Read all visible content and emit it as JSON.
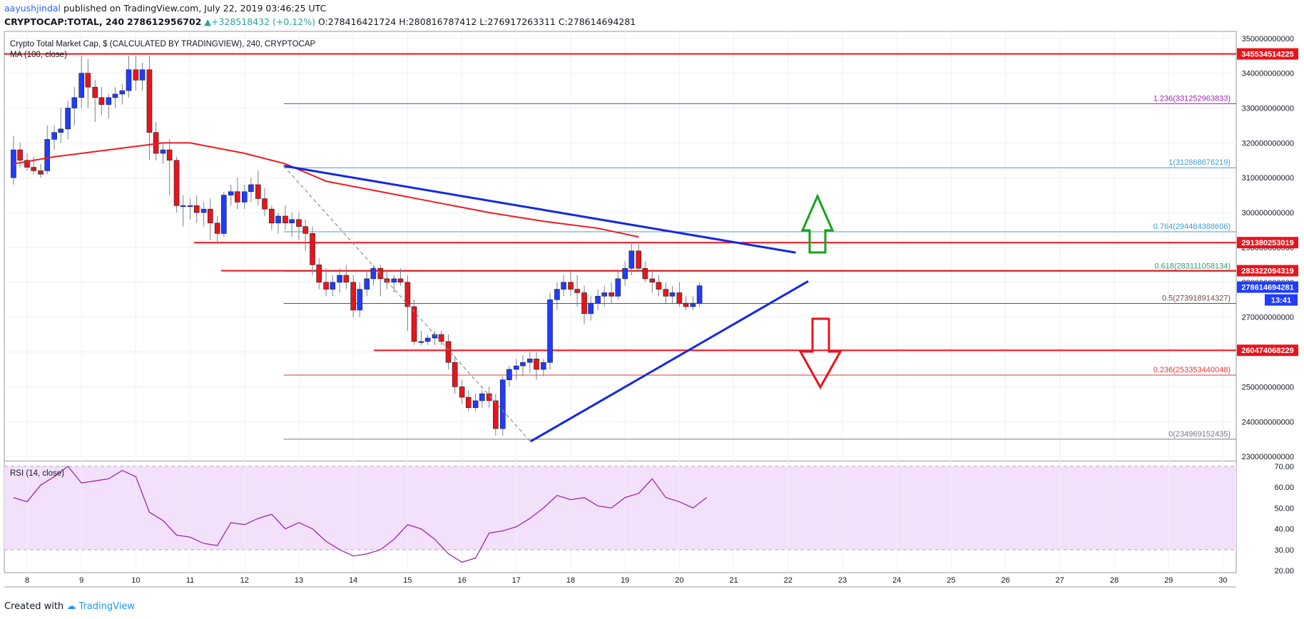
{
  "header": {
    "author": "aayushjindal",
    "published": "published on TradingView.com, July 22, 2019 03:46:25 UTC",
    "symbol": "CRYPTOCAP:TOTAL, 240",
    "price": "278612956702",
    "change_arrow": "▲",
    "change": "+328518432 (+0.12%)",
    "o_label": "O:",
    "o": "278416421724",
    "h_label": "H:",
    "h": "280816787412",
    "l_label": "L:",
    "l": "276917263311",
    "c_label": "C:",
    "c": "278614694281"
  },
  "legend": {
    "title": "Crypto Total Market Cap, $ (CALCULATED BY TRADINGVIEW), 240, CRYPTOCAP",
    "ma": "MA (100, close)",
    "rsi": "RSI (14, close)"
  },
  "footer": {
    "created_with": "Created with",
    "brand": "TradingView"
  },
  "colors": {
    "up": "#1f3cff",
    "down": "#e8141c",
    "ma": "#ee1c22",
    "trendline": "#1428e0",
    "fib": "#9c27b0",
    "rsi": "#9c27b0",
    "rsi_band": "#f3e0fb",
    "arrow_up": "#17a31a",
    "arrow_down": "#e8141c",
    "current": "#1f3cff"
  },
  "chart_data": [
    {
      "type": "candlestick",
      "x_axis": {
        "ticks": [
          "8",
          "9",
          "10",
          "11",
          "12",
          "13",
          "14",
          "15",
          "16",
          "17",
          "18",
          "19",
          "20",
          "21",
          "22",
          "23",
          "24",
          "25",
          "26",
          "27",
          "28",
          "29",
          "30"
        ]
      },
      "y_axis": {
        "range": [
          229000000000,
          352000000000
        ],
        "ticks": [
          "230000000000",
          "240000000000",
          "250000000000",
          "260000000000",
          "270000000000",
          "280000000000",
          "290000000000",
          "300000000000",
          "310000000000",
          "320000000000",
          "330000000000",
          "340000000000",
          "350000000000"
        ]
      },
      "candles": [
        [
          7.75,
          310,
          322,
          308,
          318
        ],
        [
          7.87,
          318,
          320,
          313,
          315
        ],
        [
          8.0,
          315,
          317,
          312,
          313
        ],
        [
          8.12,
          313,
          316,
          311,
          312
        ],
        [
          8.25,
          312,
          314,
          310,
          311
        ],
        [
          8.37,
          312,
          325,
          311,
          321
        ],
        [
          8.5,
          321,
          325,
          318,
          323
        ],
        [
          8.62,
          323,
          330,
          320,
          324
        ],
        [
          8.75,
          324,
          332,
          321,
          330
        ],
        [
          8.87,
          330,
          336,
          325,
          333
        ],
        [
          9.0,
          333,
          345,
          330,
          340
        ],
        [
          9.12,
          340,
          344,
          330,
          336
        ],
        [
          9.25,
          336,
          338,
          326,
          333
        ],
        [
          9.37,
          333,
          336,
          328,
          331
        ],
        [
          9.5,
          331,
          334,
          327,
          333
        ],
        [
          9.62,
          333,
          336,
          330,
          334
        ],
        [
          9.75,
          334,
          337,
          331,
          335
        ],
        [
          9.87,
          335,
          345,
          333,
          341
        ],
        [
          10.0,
          341,
          345,
          335,
          338
        ],
        [
          10.12,
          338,
          343,
          335,
          341
        ],
        [
          10.25,
          341,
          345,
          315,
          323
        ],
        [
          10.37,
          323,
          326,
          315,
          317
        ],
        [
          10.5,
          317,
          320,
          314,
          318
        ],
        [
          10.62,
          318,
          321,
          305,
          315
        ],
        [
          10.75,
          315,
          316,
          300,
          302
        ],
        [
          10.87,
          302,
          305,
          296,
          302
        ],
        [
          11.0,
          302,
          304,
          298,
          302
        ],
        [
          11.12,
          302,
          305,
          297,
          300
        ],
        [
          11.25,
          300,
          303,
          296,
          301
        ],
        [
          11.37,
          301,
          304,
          292,
          297
        ],
        [
          11.5,
          297,
          299,
          291,
          294
        ],
        [
          11.62,
          294,
          306,
          293,
          305
        ],
        [
          11.75,
          305,
          308,
          302,
          306
        ],
        [
          11.87,
          306,
          310,
          301,
          303
        ],
        [
          12.0,
          303,
          308,
          301,
          306
        ],
        [
          12.12,
          306,
          310,
          303,
          308
        ],
        [
          12.25,
          308,
          312,
          302,
          304
        ],
        [
          12.37,
          304,
          307,
          299,
          301
        ],
        [
          12.5,
          301,
          302,
          295,
          297
        ],
        [
          12.62,
          297,
          300,
          294,
          299
        ],
        [
          12.75,
          299,
          302,
          295,
          297
        ],
        [
          12.87,
          297,
          300,
          293,
          298
        ],
        [
          13.0,
          298,
          300,
          292,
          296
        ],
        [
          13.12,
          296,
          298,
          289,
          294
        ],
        [
          13.25,
          294,
          296,
          282,
          285
        ],
        [
          13.37,
          285,
          287,
          278,
          280
        ],
        [
          13.5,
          280,
          284,
          276,
          278
        ],
        [
          13.62,
          278,
          282,
          276,
          280
        ],
        [
          13.75,
          280,
          284,
          277,
          282
        ],
        [
          13.87,
          282,
          285,
          278,
          280
        ],
        [
          14.0,
          280,
          282,
          270,
          272
        ],
        [
          14.12,
          272,
          280,
          270,
          278
        ],
        [
          14.25,
          278,
          283,
          276,
          281
        ],
        [
          14.37,
          281,
          285,
          279,
          284
        ],
        [
          14.5,
          284,
          285,
          276,
          281
        ],
        [
          14.62,
          281,
          283,
          278,
          280
        ],
        [
          14.75,
          280,
          282,
          277,
          281
        ],
        [
          14.87,
          281,
          284,
          279,
          280
        ],
        [
          15.0,
          280,
          282,
          266,
          273
        ],
        [
          15.12,
          273,
          275,
          262,
          263
        ],
        [
          15.25,
          263,
          266,
          262,
          263
        ],
        [
          15.37,
          263,
          265,
          262,
          264
        ],
        [
          15.5,
          264,
          266,
          262,
          265
        ],
        [
          15.62,
          265,
          266,
          262,
          263
        ],
        [
          15.75,
          263,
          265,
          255,
          257
        ],
        [
          15.87,
          257,
          259,
          248,
          250
        ],
        [
          16.0,
          250,
          252,
          245,
          247
        ],
        [
          16.12,
          247,
          249,
          243,
          244
        ],
        [
          16.25,
          244,
          248,
          243,
          246
        ],
        [
          16.37,
          246,
          249,
          244,
          248
        ],
        [
          16.5,
          248,
          250,
          244,
          246
        ],
        [
          16.62,
          246,
          248,
          236,
          238
        ],
        [
          16.75,
          238,
          253,
          236,
          252
        ],
        [
          16.87,
          252,
          256,
          250,
          255
        ],
        [
          17.0,
          255,
          258,
          252,
          256
        ],
        [
          17.12,
          256,
          259,
          253,
          257
        ],
        [
          17.25,
          257,
          260,
          254,
          258
        ],
        [
          17.37,
          258,
          260,
          252,
          255
        ],
        [
          17.5,
          255,
          258,
          253,
          257
        ],
        [
          17.62,
          257,
          277,
          255,
          275
        ],
        [
          17.75,
          275,
          280,
          272,
          278
        ],
        [
          17.87,
          278,
          282,
          276,
          280
        ],
        [
          18.0,
          280,
          283,
          276,
          278
        ],
        [
          18.12,
          278,
          282,
          273,
          277
        ],
        [
          18.25,
          277,
          279,
          268,
          271
        ],
        [
          18.37,
          271,
          276,
          269,
          274
        ],
        [
          18.5,
          274,
          278,
          272,
          276
        ],
        [
          18.62,
          276,
          279,
          273,
          277
        ],
        [
          18.75,
          277,
          280,
          274,
          276
        ],
        [
          18.87,
          276,
          283,
          275,
          281
        ],
        [
          19.0,
          281,
          286,
          279,
          284
        ],
        [
          19.12,
          284,
          291,
          282,
          289
        ],
        [
          19.25,
          289,
          291,
          283,
          284
        ],
        [
          19.37,
          284,
          286,
          280,
          281
        ],
        [
          19.5,
          281,
          283,
          277,
          280
        ],
        [
          19.62,
          280,
          282,
          276,
          278
        ],
        [
          19.75,
          278,
          280,
          274,
          276
        ],
        [
          19.87,
          276,
          279,
          274,
          277
        ],
        [
          20.0,
          277,
          280,
          273,
          274
        ],
        [
          20.12,
          274,
          276,
          272,
          273
        ],
        [
          20.25,
          273,
          276,
          272,
          274
        ],
        [
          20.37,
          274,
          280,
          273,
          279
        ]
      ],
      "moving_average": [
        [
          7.75,
          314
        ],
        [
          8.5,
          316
        ],
        [
          9.5,
          318
        ],
        [
          10.5,
          320
        ],
        [
          11.0,
          320
        ],
        [
          12.0,
          317
        ],
        [
          12.75,
          314
        ],
        [
          13.5,
          309
        ],
        [
          14.5,
          306
        ],
        [
          15.5,
          303
        ],
        [
          16.5,
          300
        ],
        [
          17.5,
          297.5
        ],
        [
          18.5,
          295.5
        ],
        [
          19.25,
          293
        ]
      ],
      "horizontal_levels": [
        {
          "label": "345534514225",
          "value": 345534514225
        },
        {
          "label": "291380253019",
          "value": 291380253019
        },
        {
          "label": "283322094319",
          "value": 283322094319
        },
        {
          "label": "260474068229",
          "value": 260474068229
        }
      ],
      "fib_levels": [
        {
          "label": "1.236(331252963833)",
          "value": 331252963833
        },
        {
          "label": "1(312868676219)",
          "value": 312868676219
        },
        {
          "label": "0.764(294484388606)",
          "value": 294484388606
        },
        {
          "label": "0.618(283111058134)",
          "value": 283111058134
        },
        {
          "label": "0.5(273918914327)",
          "value": 273918914327
        },
        {
          "label": "0.236(253353440048)",
          "value": 253353440048
        },
        {
          "label": "0(234969152435)",
          "value": 234969152435
        }
      ],
      "trendlines": [
        {
          "name": "bearish trend line",
          "from": [
            12.72,
            313.4
          ],
          "to": [
            22.14,
            288.5
          ]
        },
        {
          "name": "bullish trend line",
          "from": [
            17.26,
            234.3
          ],
          "to": [
            22.37,
            280.3
          ]
        },
        {
          "name": "fib swing",
          "from": [
            12.72,
            313.4
          ],
          "to": [
            17.26,
            234.3
          ]
        }
      ],
      "current_price": {
        "label": "278614694281",
        "value": 278614694281
      },
      "countdown": "13:41",
      "annotations": [
        "upside arrow",
        "downside arrow"
      ]
    },
    {
      "type": "line",
      "name": "RSI (14, close)",
      "y_axis": {
        "range": [
          19,
          72
        ],
        "ticks": [
          "20.00",
          "30.00",
          "40.00",
          "50.00",
          "60.00",
          "70.00"
        ],
        "band": [
          30,
          70
        ]
      },
      "x": [
        7.75,
        8.0,
        8.25,
        8.5,
        8.75,
        9.0,
        9.25,
        9.5,
        9.75,
        10.0,
        10.25,
        10.5,
        10.75,
        11.0,
        11.25,
        11.5,
        11.75,
        12.0,
        12.25,
        12.5,
        12.75,
        13.0,
        13.25,
        13.5,
        13.75,
        14.0,
        14.25,
        14.5,
        14.75,
        15.0,
        15.25,
        15.5,
        15.75,
        16.0,
        16.25,
        16.5,
        16.75,
        17.0,
        17.25,
        17.5,
        17.75,
        18.0,
        18.25,
        18.5,
        18.75,
        19.0,
        19.25,
        19.5,
        19.75,
        20.0,
        20.25,
        20.5
      ],
      "values": [
        55,
        53,
        61,
        65,
        70,
        62,
        63,
        64,
        68,
        65,
        48,
        44,
        37,
        36,
        33,
        32,
        43,
        42,
        45,
        47,
        40,
        43,
        40,
        34,
        30,
        27,
        28,
        30,
        35,
        42,
        40,
        35,
        28,
        24,
        26,
        38,
        39,
        41,
        45,
        50,
        56,
        54,
        55,
        51,
        50,
        55,
        57,
        64,
        55,
        53,
        50,
        55
      ]
    }
  ]
}
